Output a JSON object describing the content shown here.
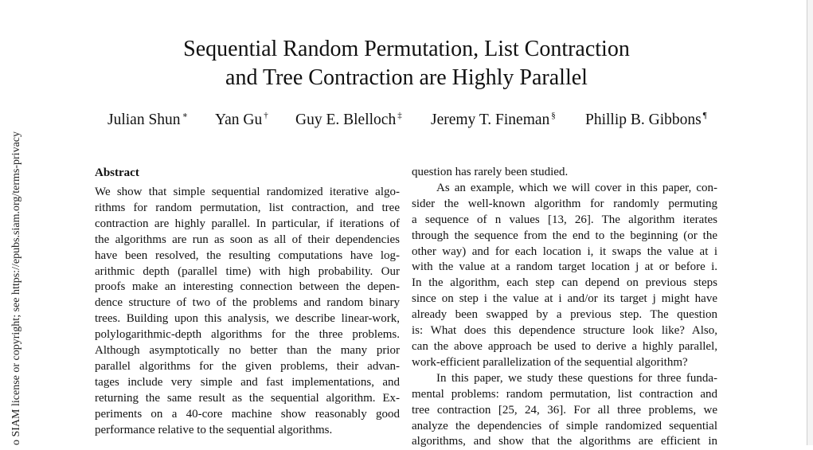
{
  "side_notice": "o SIAM license or copyright; see https://epubs.siam.org/terms-privacy",
  "title": {
    "line1": "Sequential Random Permutation, List Contraction",
    "line2": "and Tree Contraction are Highly Parallel"
  },
  "authors": [
    {
      "name": "Julian Shun",
      "mark": "∗"
    },
    {
      "name": "Yan Gu",
      "mark": "†"
    },
    {
      "name": "Guy E. Blelloch",
      "mark": "‡"
    },
    {
      "name": "Jeremy T. Fineman",
      "mark": "§"
    },
    {
      "name": "Phillip B. Gibbons",
      "mark": "¶"
    }
  ],
  "abstract": {
    "heading": "Abstract",
    "lines": [
      "We show that simple sequential randomized iterative algo-",
      "rithms for random permutation, list contraction, and tree",
      "contraction are highly parallel. In particular, if iterations of",
      "the algorithms are run as soon as all of their dependencies",
      "have been resolved, the resulting computations have log-",
      "arithmic depth (parallel time) with high probability. Our",
      "proofs make an interesting connection between the depen-",
      "dence structure of two of the problems and random binary",
      "trees. Building upon this analysis, we describe linear-work,",
      "polylogarithmic-depth algorithms for the three problems.",
      "Although asymptotically no better than the many prior",
      "parallel algorithms for the given problems, their advan-",
      "tages include very simple and fast implementations, and",
      "returning the same result as the sequential algorithm. Ex-",
      "periments on a 40-core machine show reasonably good",
      "performance relative to the sequential algorithms."
    ]
  },
  "right_column": {
    "lines": [
      "question has rarely been studied.",
      "As an example, which we will cover in this paper, con-",
      "sider the well-known algorithm for randomly permuting",
      "a sequence of n values [13, 26]. The algorithm iterates",
      "through the sequence from the end to the beginning (or the",
      "other way) and for each location i, it swaps the value at i",
      "with the value at a random target location j at or before i.",
      "In the algorithm, each step can depend on previous steps",
      "since on step i the value at i and/or its target j might have",
      "already been swapped by a previous step. The question",
      "is: What does this dependence structure look like? Also,",
      "can the above approach be used to derive a highly parallel,",
      "work-efficient parallelization of the sequential algorithm?",
      "In this paper, we study these questions for three funda-",
      "mental problems: random permutation, list contraction and",
      "tree contraction [25, 24, 36]. For all three problems, we",
      "analyze the dependencies of simple randomized sequential",
      "algorithms, and show that the algorithms are efficient in"
    ]
  }
}
